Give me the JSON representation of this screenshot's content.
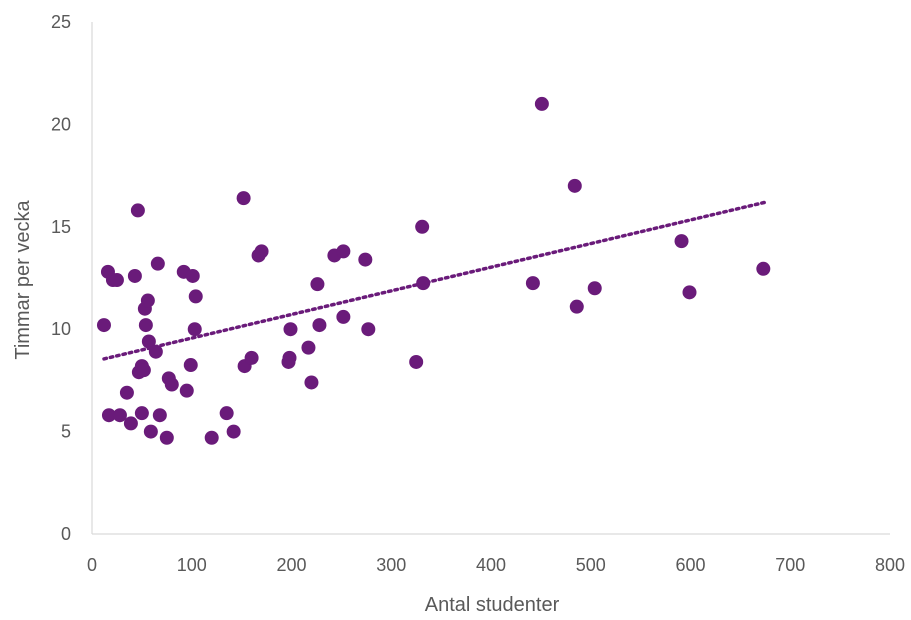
{
  "chart_data": {
    "type": "scatter",
    "xlabel": "Antal studenter",
    "ylabel": "Timmar per vecka",
    "xlim": [
      0,
      800
    ],
    "ylim": [
      0,
      25
    ],
    "x_ticks": [
      0,
      100,
      200,
      300,
      400,
      500,
      600,
      700,
      800
    ],
    "y_ticks": [
      0,
      5,
      10,
      15,
      20,
      25
    ],
    "grid": false,
    "legend": "none",
    "marker_color": "#6A1B7A",
    "trendline": {
      "type": "linear",
      "style": "dotted",
      "x_start": 12,
      "x_end": 675,
      "y_start": 8.55,
      "y_end": 16.2
    },
    "series": [
      {
        "points": [
          [
            12,
            10.2
          ],
          [
            16,
            12.8
          ],
          [
            17,
            5.8
          ],
          [
            21,
            12.4
          ],
          [
            25,
            12.4
          ],
          [
            28,
            5.8
          ],
          [
            35,
            6.9
          ],
          [
            39,
            5.4
          ],
          [
            43,
            12.6
          ],
          [
            46,
            15.8
          ],
          [
            47,
            7.9
          ],
          [
            50,
            8.2
          ],
          [
            50,
            5.9
          ],
          [
            52,
            8.0
          ],
          [
            53,
            11.0
          ],
          [
            54,
            10.2
          ],
          [
            56,
            11.4
          ],
          [
            57,
            9.4
          ],
          [
            59,
            5.0
          ],
          [
            64,
            8.9
          ],
          [
            66,
            13.2
          ],
          [
            68,
            5.8
          ],
          [
            75,
            4.7
          ],
          [
            77,
            7.6
          ],
          [
            80,
            7.3
          ],
          [
            92,
            12.8
          ],
          [
            95,
            7.0
          ],
          [
            99,
            8.25
          ],
          [
            101,
            12.6
          ],
          [
            103,
            10.0
          ],
          [
            104,
            11.6
          ],
          [
            120,
            4.7
          ],
          [
            135,
            5.9
          ],
          [
            142,
            5.0
          ],
          [
            152,
            16.4
          ],
          [
            153,
            8.2
          ],
          [
            160,
            8.6
          ],
          [
            167,
            13.6
          ],
          [
            170,
            13.8
          ],
          [
            197,
            8.4
          ],
          [
            198,
            8.6
          ],
          [
            199,
            10.0
          ],
          [
            217,
            9.1
          ],
          [
            220,
            7.4
          ],
          [
            226,
            12.2
          ],
          [
            228,
            10.2
          ],
          [
            243,
            13.6
          ],
          [
            252,
            13.8
          ],
          [
            252,
            10.6
          ],
          [
            274,
            13.4
          ],
          [
            277,
            10.0
          ],
          [
            325,
            8.4
          ],
          [
            331,
            15.0
          ],
          [
            332,
            12.25
          ],
          [
            442,
            12.25
          ],
          [
            451,
            21.0
          ],
          [
            484,
            17.0
          ],
          [
            486,
            11.1
          ],
          [
            504,
            12.0
          ],
          [
            591,
            14.3
          ],
          [
            599,
            11.8
          ],
          [
            673,
            12.95
          ]
        ]
      }
    ]
  }
}
